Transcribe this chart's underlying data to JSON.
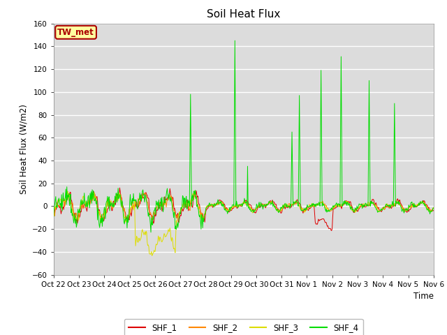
{
  "title": "Soil Heat Flux",
  "ylabel": "Soil Heat Flux (W/m2)",
  "xlabel": "Time",
  "ylim": [
    -60,
    160
  ],
  "yticks": [
    -60,
    -40,
    -20,
    0,
    20,
    40,
    60,
    80,
    100,
    120,
    140,
    160
  ],
  "bg_color": "#DCDCDC",
  "fig_color": "#FFFFFF",
  "annotation_text": "TW_met",
  "annotation_bg": "#FFFFA0",
  "annotation_border": "#AA0000",
  "series_colors": [
    "#DD0000",
    "#FF8800",
    "#DDDD00",
    "#00DD00"
  ],
  "series_labels": [
    "SHF_1",
    "SHF_2",
    "SHF_3",
    "SHF_4"
  ],
  "line_width": 0.7,
  "xtick_labels": [
    "Oct 22",
    "Oct 23",
    "Oct 24",
    "Oct 25",
    "Oct 26",
    "Oct 27",
    "Oct 28",
    "Oct 29",
    "Oct 30",
    "Oct 31",
    "Nov 1",
    "Nov 2",
    "Nov 3",
    "Nov 4",
    "Nov 5",
    "Nov 6"
  ],
  "num_points": 720,
  "start_day": 0,
  "end_day": 15
}
